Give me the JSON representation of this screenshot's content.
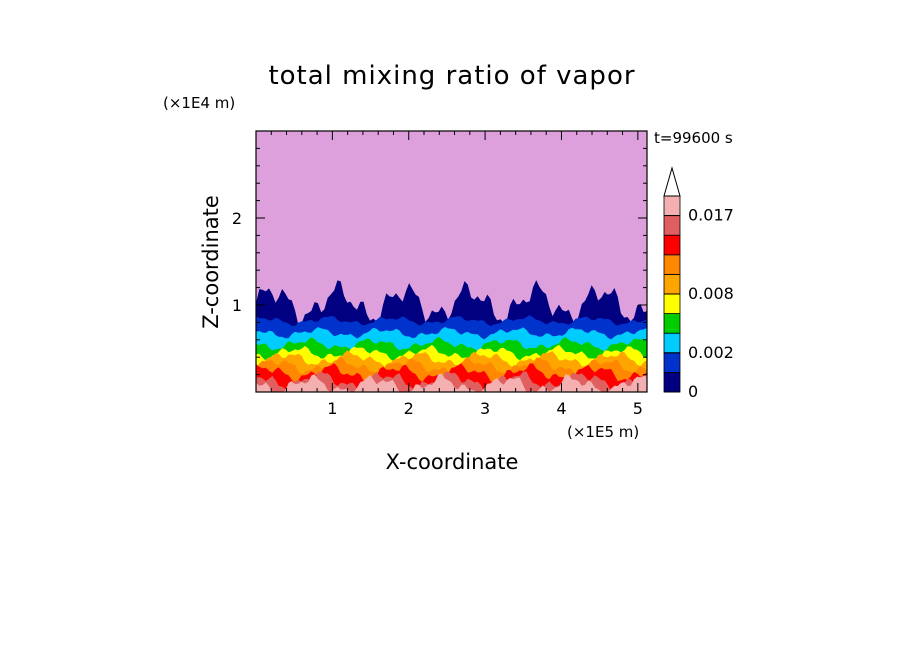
{
  "chart_data": {
    "type": "heatmap",
    "title": "total mixing ratio of vapor",
    "xlabel": "X-coordinate",
    "ylabel": "Z-coordinate",
    "x_unit": "(×1E5 m)",
    "y_unit": "(×1E4 m)",
    "time_label": "t=99600 s",
    "xlim": [
      0,
      5.12
    ],
    "ylim": [
      0,
      3.0
    ],
    "x_ticks": [
      "1",
      "2",
      "3",
      "4",
      "5"
    ],
    "x_tick_values": [
      1,
      2,
      3,
      4,
      5
    ],
    "y_ticks": [
      "1",
      "2"
    ],
    "y_tick_values": [
      1,
      2
    ],
    "grid": false,
    "colorbar": {
      "placement": "right",
      "levels": [
        0,
        0.001,
        0.002,
        0.004,
        0.006,
        0.008,
        0.01,
        0.012,
        0.014,
        0.017,
        0.02
      ],
      "labels": [
        "0",
        "0.002",
        "0.008",
        "0.017"
      ],
      "label_values": [
        0,
        0.002,
        0.008,
        0.017
      ],
      "extend": "max",
      "colors": [
        "#000080",
        "#0033cc",
        "#00ccff",
        "#00cc00",
        "#ffff00",
        "#ffa500",
        "#ff8800",
        "#ff0000",
        "#e06060",
        "#f4b0b0"
      ]
    },
    "background_color": "#dda0dd",
    "layers_z": [
      {
        "level": 0.017,
        "color": "#f4b0b0",
        "top_z": 0.08
      },
      {
        "level": 0.014,
        "color": "#e06060",
        "top_z": 0.13
      },
      {
        "level": 0.012,
        "color": "#ff0000",
        "top_z": 0.22
      },
      {
        "level": 0.01,
        "color": "#ff8800",
        "top_z": 0.3
      },
      {
        "level": 0.008,
        "color": "#ffa500",
        "top_z": 0.38
      },
      {
        "level": 0.006,
        "color": "#ffff00",
        "top_z": 0.45
      },
      {
        "level": 0.004,
        "color": "#00cc00",
        "top_z": 0.55
      },
      {
        "level": 0.002,
        "color": "#00ccff",
        "top_z": 0.68
      },
      {
        "level": 0.001,
        "color": "#0033cc",
        "top_z": 0.82
      },
      {
        "level": 0.0005,
        "color": "#000080",
        "top_z": 1.02
      }
    ]
  }
}
